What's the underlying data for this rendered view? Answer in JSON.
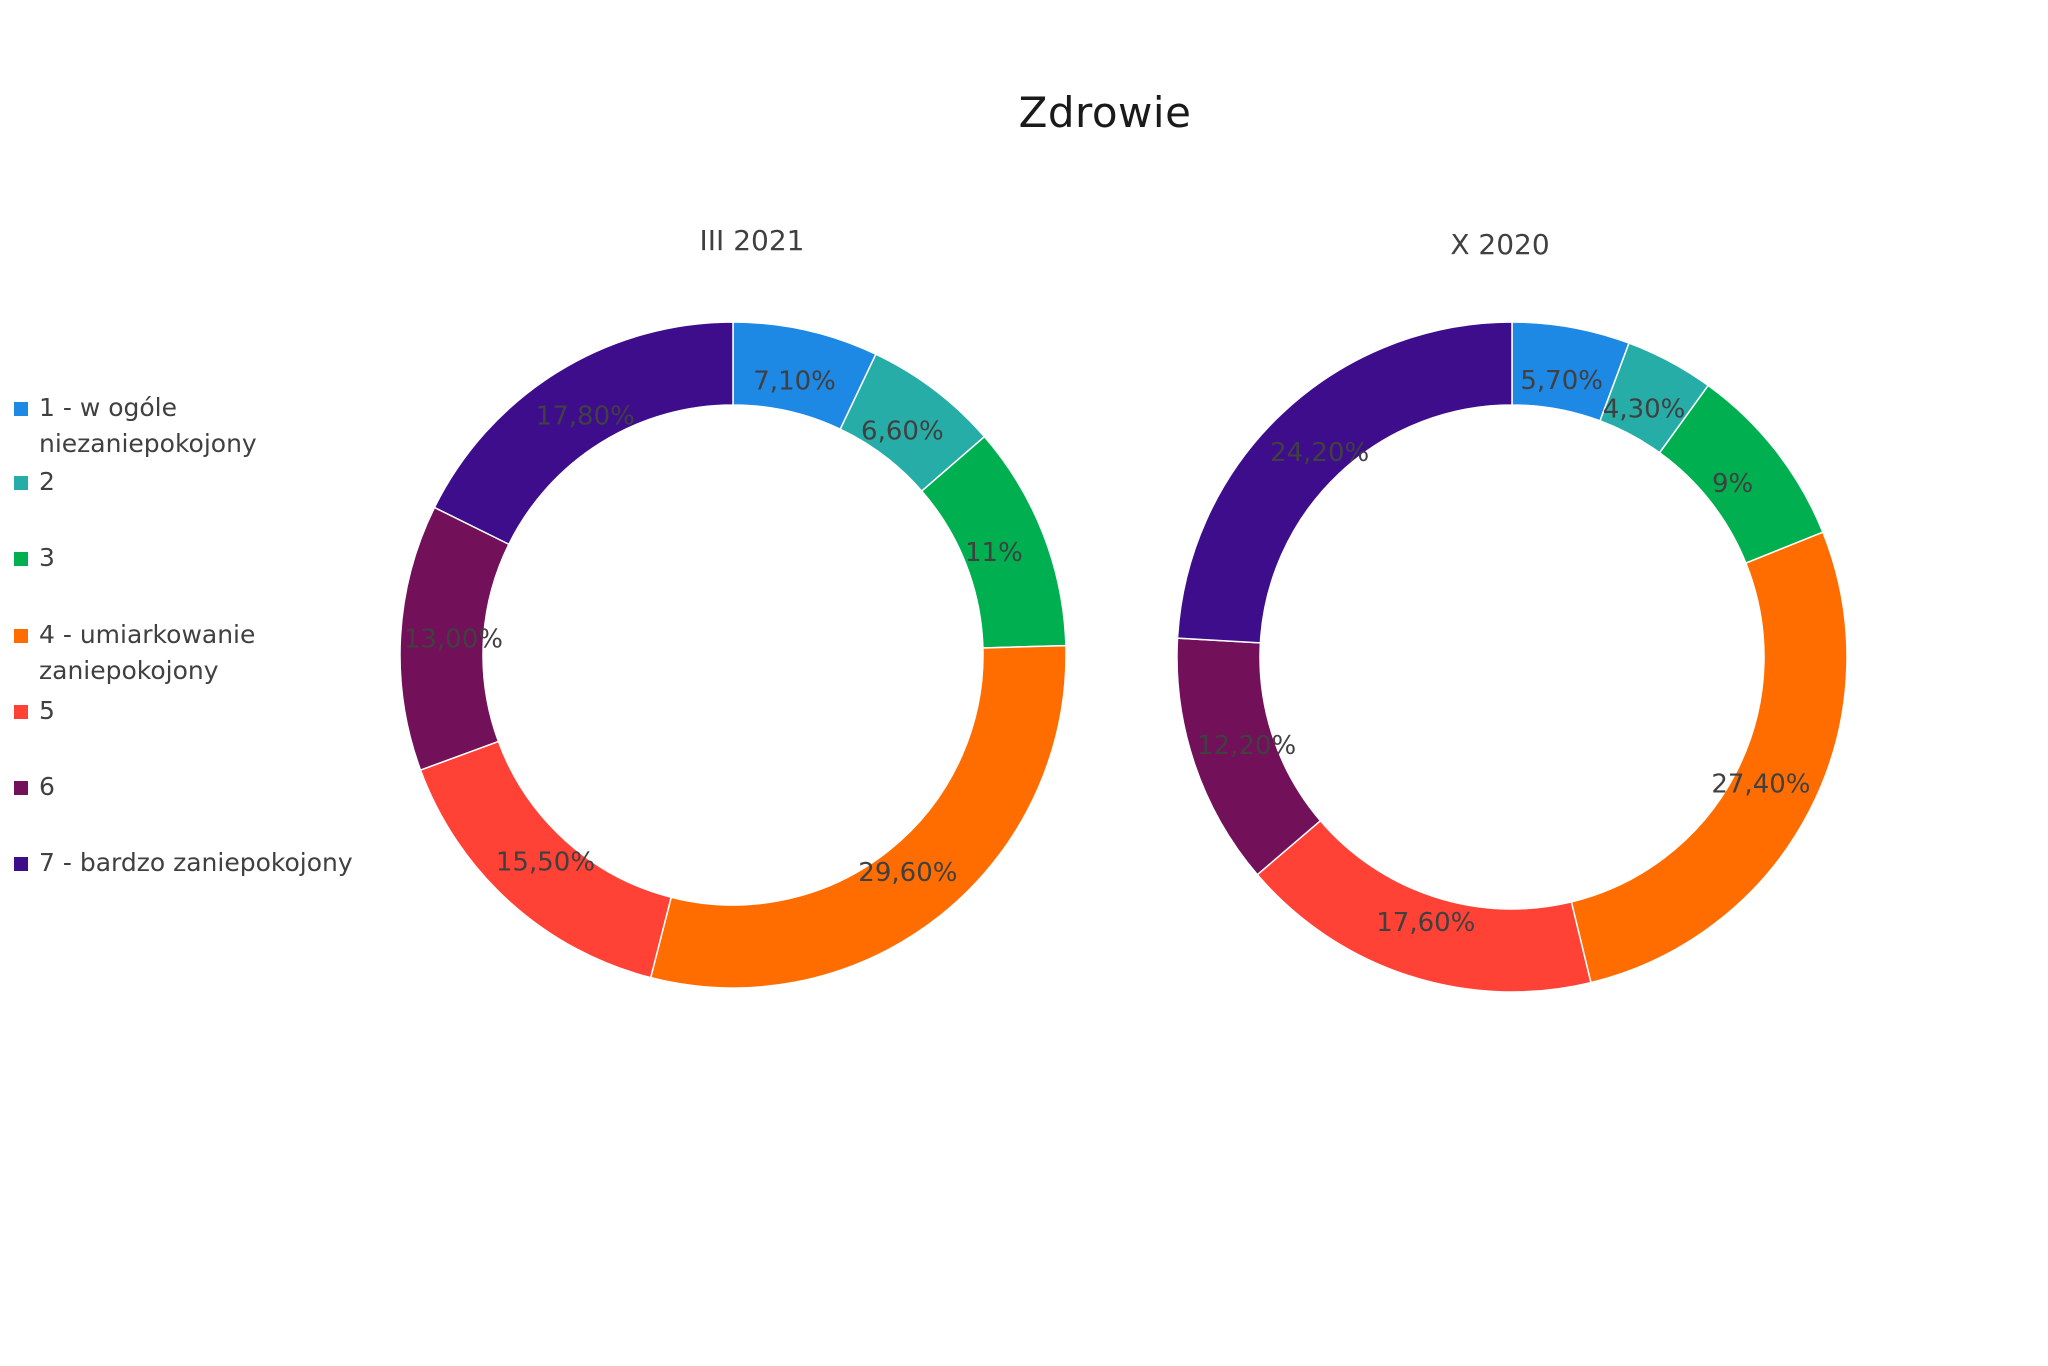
{
  "title": "Zdrowie",
  "colors": [
    "#1E88E5",
    "#26ADA8",
    "#00B050",
    "#FF6D00",
    "#FF4136",
    "#72105A",
    "#3D0D8C"
  ],
  "legend": [
    {
      "label": "1 - w ogóle niezaniepokojony",
      "color": "#1E88E5"
    },
    {
      "label": "2",
      "color": "#26ADA8"
    },
    {
      "label": "3",
      "color": "#00B050"
    },
    {
      "label": "4 - umiarkowanie zaniepokojony",
      "color": "#FF6D00"
    },
    {
      "label": "5",
      "color": "#FF4136"
    },
    {
      "label": "6",
      "color": "#72105A"
    },
    {
      "label": "7 - bardzo zaniepokojony",
      "color": "#3D0D8C"
    }
  ],
  "chart_data": [
    {
      "type": "pie",
      "subtype": "donut",
      "title": "III 2021",
      "categories": [
        "1 - w ogóle niezaniepokojony",
        "2",
        "3",
        "4 - umiarkowanie zaniepokojony",
        "5",
        "6",
        "7 - bardzo zaniepokojony"
      ],
      "values": [
        7.1,
        6.6,
        11,
        29.6,
        15.5,
        13.0,
        17.8
      ],
      "labels": [
        "7,10%",
        "6,60%",
        "11%",
        "29,60%",
        "15,50%",
        "13,00%",
        "17,80%"
      ],
      "legend_position": "left"
    },
    {
      "type": "pie",
      "subtype": "donut",
      "title": "X 2020",
      "categories": [
        "1 - w ogóle niezaniepokojony",
        "2",
        "3",
        "4 - umiarkowanie zaniepokojony",
        "5",
        "6",
        "7 - bardzo zaniepokojony"
      ],
      "values": [
        5.7,
        4.3,
        9,
        27.4,
        17.6,
        12.2,
        24.2
      ],
      "labels": [
        "5,70%",
        "4,30%",
        "9%",
        "27,40%",
        "17,60%",
        "12,20%",
        "24,20%"
      ],
      "legend_position": "left"
    }
  ]
}
